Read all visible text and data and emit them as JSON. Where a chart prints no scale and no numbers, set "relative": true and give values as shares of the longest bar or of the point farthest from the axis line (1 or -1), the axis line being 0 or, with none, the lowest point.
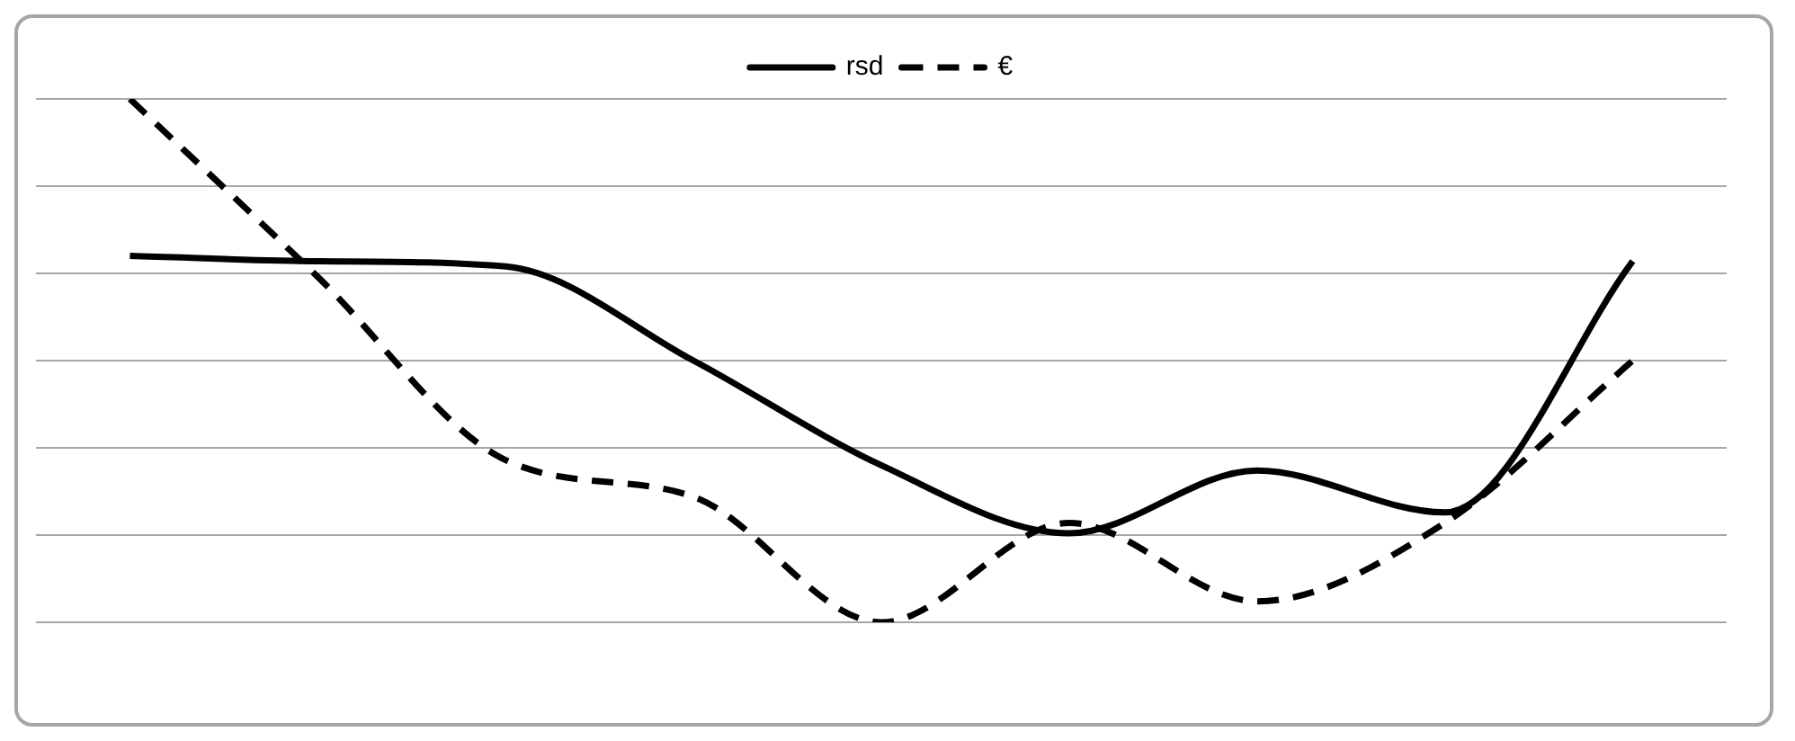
{
  "chart_data": {
    "type": "line",
    "relative": true,
    "categories": [
      null,
      null,
      null,
      null,
      null,
      null,
      null,
      null,
      null
    ],
    "series": [
      {
        "name": "rsd",
        "color": "#000000",
        "line_style": "solid",
        "values": [
          0.7,
          0.69,
          0.68,
          0.5,
          0.3,
          0.17,
          0.29,
          0.21,
          0.69
        ]
      },
      {
        "name": "€",
        "color": "#000000",
        "line_style": "dashed",
        "values": [
          1,
          0.66,
          0.31,
          0.24,
          0,
          0.19,
          0.04,
          0.19,
          0.5
        ]
      }
    ],
    "grid": "y",
    "legend": "top",
    "marker": "none"
  }
}
